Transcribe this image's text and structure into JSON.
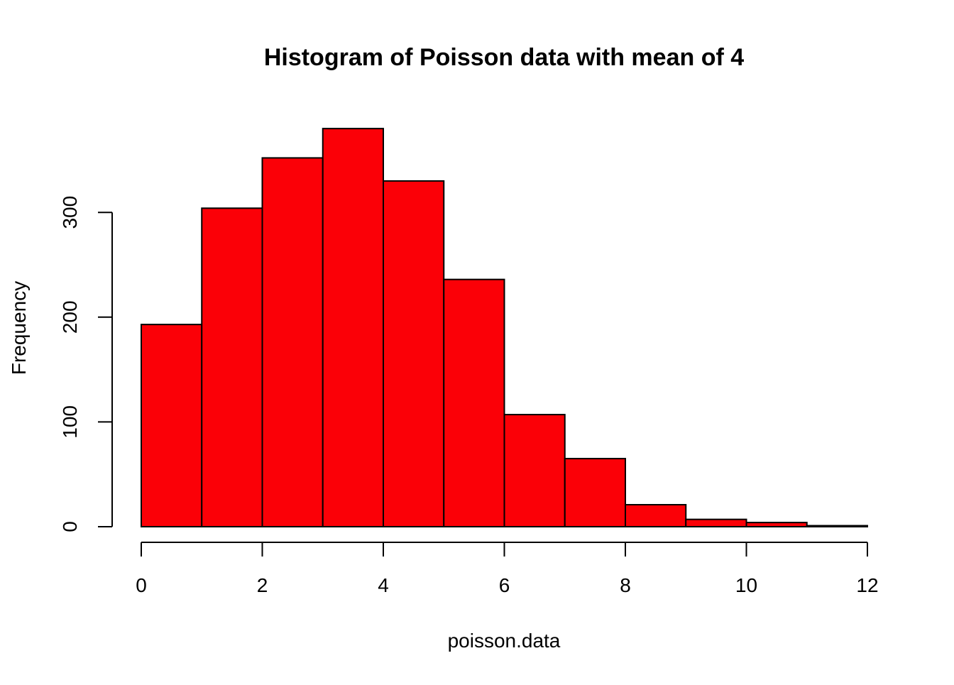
{
  "chart_data": {
    "type": "bar",
    "title": "Histogram of Poisson data with mean of 4",
    "xlabel": "poisson.data",
    "ylabel": "Frequency",
    "bin_edges": [
      0,
      1,
      2,
      3,
      4,
      5,
      6,
      7,
      8,
      9,
      10,
      11,
      12
    ],
    "values": [
      193,
      304,
      352,
      380,
      330,
      236,
      107,
      65,
      21,
      7,
      4,
      1
    ],
    "xlim": [
      0,
      12
    ],
    "ylim": [
      0,
      380
    ],
    "x_ticks": [
      0,
      2,
      4,
      6,
      8,
      10,
      12
    ],
    "y_ticks": [
      0,
      100,
      200,
      300
    ],
    "bar_color": "#fb0007",
    "edge_color": "#000000",
    "grid": false
  }
}
